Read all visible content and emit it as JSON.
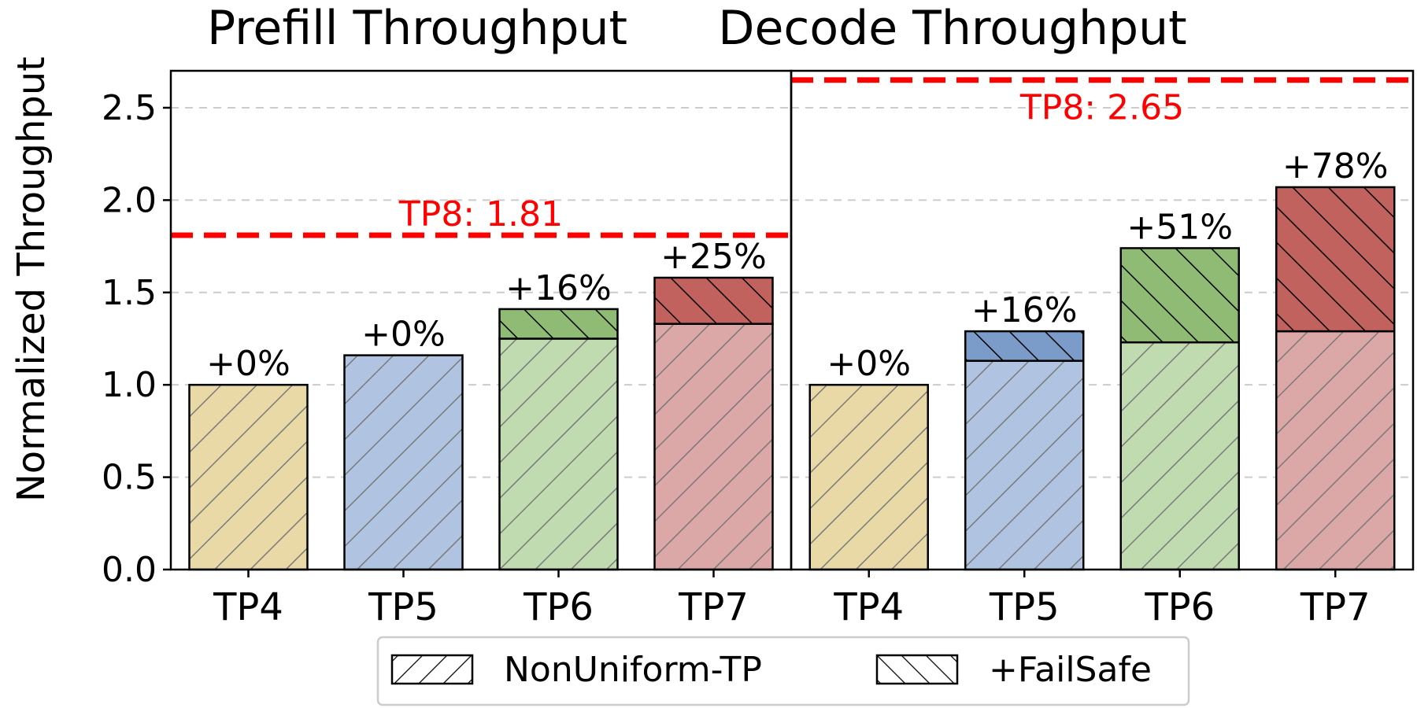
{
  "chart_data": {
    "type": "bar",
    "ylabel": "Normalized Throughput",
    "ylim": [
      0,
      2.7
    ],
    "yticks": [
      "0.0",
      "0.5",
      "1.0",
      "1.5",
      "2.0",
      "2.5"
    ],
    "grid": "horizontal dashed",
    "categories": [
      "TP4",
      "TP5",
      "TP6",
      "TP7"
    ],
    "category_colors": [
      "#e8d9a6",
      "#b0c4e2",
      "#c1dbb0",
      "#dca7a7"
    ],
    "failsafe_colors": [
      "#d4b55a",
      "#7b9bc9",
      "#8fbb74",
      "#c2625e"
    ],
    "legend": {
      "placement": "bottom-center",
      "entries": [
        {
          "label": "NonUniform-TP",
          "hatch": "forward"
        },
        {
          "label": "+FailSafe",
          "hatch": "backward"
        }
      ]
    },
    "panels": [
      {
        "title": "Prefill Throughput",
        "nonuniform_tp": [
          1.0,
          1.16,
          1.25,
          1.33
        ],
        "total_with_failsafe": [
          1.0,
          1.16,
          1.41,
          1.58
        ],
        "labels": [
          "+0%",
          "+0%",
          "+16%",
          "+25%"
        ],
        "reference": {
          "value": 1.81,
          "label": "TP8: 1.81",
          "color": "#ff0000"
        }
      },
      {
        "title": "Decode Throughput",
        "nonuniform_tp": [
          1.0,
          1.13,
          1.23,
          1.29
        ],
        "total_with_failsafe": [
          1.0,
          1.29,
          1.74,
          2.07
        ],
        "labels": [
          "+0%",
          "+16%",
          "+51%",
          "+78%"
        ],
        "reference": {
          "value": 2.65,
          "label": "TP8: 2.65",
          "color": "#ff0000"
        }
      }
    ]
  }
}
